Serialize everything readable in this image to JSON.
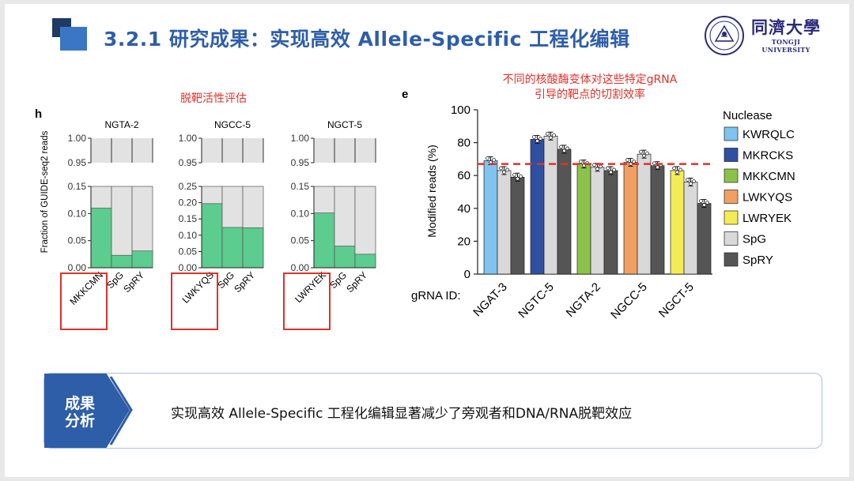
{
  "header": {
    "title": "3.2.1 研究成果：实现高效 Allele-Specific 工程化编辑",
    "logo_cn": "同濟大學",
    "logo_en": "TONGJI UNIVERSITY"
  },
  "annotations": {
    "offtarget": "脱靶活性评估",
    "cleavage_line1": "不同的核酸酶变体对这些特定gRNA",
    "cleavage_line2": "引导的靶点的切割效率"
  },
  "colors": {
    "title_blue": "#2f5ea8",
    "annotation_red": "#e0322a",
    "bar_green": "#5ccc8f",
    "bar_grey": "#e2e2e2",
    "KWRQLC": "#7fc3ee",
    "MKRCKS": "#2f4fa1",
    "MKKCMN": "#8bc34a",
    "LWKYQS": "#f0a063",
    "LWRYEK": "#f5ec55",
    "SpG": "#d9d9d9",
    "SpRY": "#555555"
  },
  "chart_data": [
    {
      "type": "bar",
      "panel": "h",
      "ylabel": "Fraction of GUIDE-seq2 reads",
      "y_ticks": [
        "0.00",
        "0.05",
        "0.10",
        "0.15",
        "0.95",
        "1.00"
      ],
      "subplots": [
        {
          "title": "NGTA-2",
          "categories": [
            "MKKCMN",
            "SpG",
            "SpRY"
          ],
          "values": [
            0.11,
            0.023,
            0.031
          ],
          "highlight": "MKKCMN"
        },
        {
          "title": "NGCC-5",
          "categories": [
            "LWKYQS",
            "SpG",
            "SpRY"
          ],
          "values": [
            0.197,
            0.124,
            0.123
          ],
          "highlight": "LWKYQS",
          "y_ticks": [
            "0.00",
            "0.05",
            "0.10",
            "0.15",
            "0.20",
            "0.25",
            "0.95",
            "1.00"
          ]
        },
        {
          "title": "NGCT-5",
          "categories": [
            "LWRYEK",
            "SpG",
            "SpRY"
          ],
          "values": [
            0.101,
            0.04,
            0.025
          ],
          "highlight": "LWRYEK"
        }
      ]
    },
    {
      "type": "bar",
      "panel": "e",
      "ylabel": "Modified reads (%)",
      "xlabel": "gRNA ID:",
      "ylim": [
        0,
        100
      ],
      "y_ticks": [
        "0",
        "20",
        "40",
        "60",
        "80",
        "100"
      ],
      "reference_line": 67,
      "legend_title": "Nuclease",
      "legend": [
        "KWRQLC",
        "MKRCKS",
        "MKKCMN",
        "LWKYQS",
        "LWRYEK",
        "SpG",
        "SpRY"
      ],
      "groups": [
        {
          "name": "NGAT-3",
          "bars": [
            {
              "series": "KWRQLC",
              "value": 69
            },
            {
              "series": "SpG",
              "value": 63
            },
            {
              "series": "SpRY",
              "value": 59
            }
          ]
        },
        {
          "name": "NGTC-5",
          "bars": [
            {
              "series": "MKRCKS",
              "value": 82
            },
            {
              "series": "SpG",
              "value": 84
            },
            {
              "series": "SpRY",
              "value": 76
            }
          ]
        },
        {
          "name": "NGTA-2",
          "bars": [
            {
              "series": "MKKCMN",
              "value": 67
            },
            {
              "series": "SpG",
              "value": 65
            },
            {
              "series": "SpRY",
              "value": 63
            }
          ]
        },
        {
          "name": "NGCC-5",
          "bars": [
            {
              "series": "LWKYQS",
              "value": 68
            },
            {
              "series": "SpG",
              "value": 73
            },
            {
              "series": "SpRY",
              "value": 66
            }
          ]
        },
        {
          "name": "NGCT-5",
          "bars": [
            {
              "series": "LWRYEK",
              "value": 63
            },
            {
              "series": "SpG",
              "value": 56
            },
            {
              "series": "SpRY",
              "value": 43
            }
          ]
        }
      ]
    }
  ],
  "result": {
    "label_line1": "成果",
    "label_line2": "分析",
    "text": "实现高效 Allele-Specific 工程化编辑显著减少了旁观者和DNA/RNA脱靶效应"
  }
}
